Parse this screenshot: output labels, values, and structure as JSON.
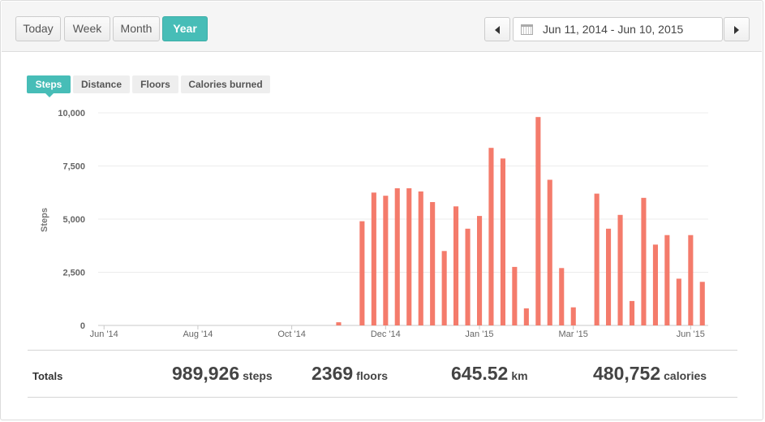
{
  "range_buttons": [
    {
      "label": "Today",
      "active": false
    },
    {
      "label": "Week",
      "active": false
    },
    {
      "label": "Month",
      "active": false
    },
    {
      "label": "Year",
      "active": true
    }
  ],
  "date_range": "Jun 11, 2014 - Jun 10, 2015",
  "metric_tabs": [
    {
      "label": "Steps",
      "active": true
    },
    {
      "label": "Distance",
      "active": false
    },
    {
      "label": "Floors",
      "active": false
    },
    {
      "label": "Calories burned",
      "active": false
    }
  ],
  "chart_data": {
    "type": "bar",
    "ylabel": "Steps",
    "ylim": [
      0,
      10000
    ],
    "yticks": [
      "0",
      "2,500",
      "5,000",
      "7,500",
      "10,000"
    ],
    "xticks": [
      {
        "label": "Jun '14",
        "week": 0
      },
      {
        "label": "Aug '14",
        "week": 8
      },
      {
        "label": "Oct '14",
        "week": 16
      },
      {
        "label": "Dec '14",
        "week": 24
      },
      {
        "label": "Jan '15",
        "week": 32
      },
      {
        "label": "Mar '15",
        "week": 40
      },
      {
        "label": "Jun '15",
        "week": 50
      }
    ],
    "week_count": 52,
    "bar_color": "#f47b6b",
    "bars": [
      {
        "week": 20,
        "value": 150
      },
      {
        "week": 22,
        "value": 4900
      },
      {
        "week": 23,
        "value": 6250
      },
      {
        "week": 24,
        "value": 6100
      },
      {
        "week": 25,
        "value": 6450
      },
      {
        "week": 26,
        "value": 6450
      },
      {
        "week": 27,
        "value": 6300
      },
      {
        "week": 28,
        "value": 5800
      },
      {
        "week": 29,
        "value": 3500
      },
      {
        "week": 30,
        "value": 5600
      },
      {
        "week": 31,
        "value": 4550
      },
      {
        "week": 32,
        "value": 5150
      },
      {
        "week": 33,
        "value": 8350
      },
      {
        "week": 34,
        "value": 7850
      },
      {
        "week": 35,
        "value": 2750
      },
      {
        "week": 36,
        "value": 800
      },
      {
        "week": 37,
        "value": 9800
      },
      {
        "week": 38,
        "value": 6850
      },
      {
        "week": 39,
        "value": 2700
      },
      {
        "week": 40,
        "value": 850
      },
      {
        "week": 42,
        "value": 6200
      },
      {
        "week": 43,
        "value": 4550
      },
      {
        "week": 44,
        "value": 5200
      },
      {
        "week": 45,
        "value": 1150
      },
      {
        "week": 46,
        "value": 6000
      },
      {
        "week": 47,
        "value": 3800
      },
      {
        "week": 48,
        "value": 4250
      },
      {
        "week": 49,
        "value": 2200
      },
      {
        "week": 50,
        "value": 4250
      },
      {
        "week": 51,
        "value": 2050
      }
    ],
    "grid": true
  },
  "totals": {
    "label": "Totals",
    "steps": {
      "value": "989,926",
      "unit": "steps"
    },
    "floors": {
      "value": "2369",
      "unit": "floors"
    },
    "distance": {
      "value": "645.52",
      "unit": "km"
    },
    "calories": {
      "value": "480,752",
      "unit": "calories"
    }
  }
}
